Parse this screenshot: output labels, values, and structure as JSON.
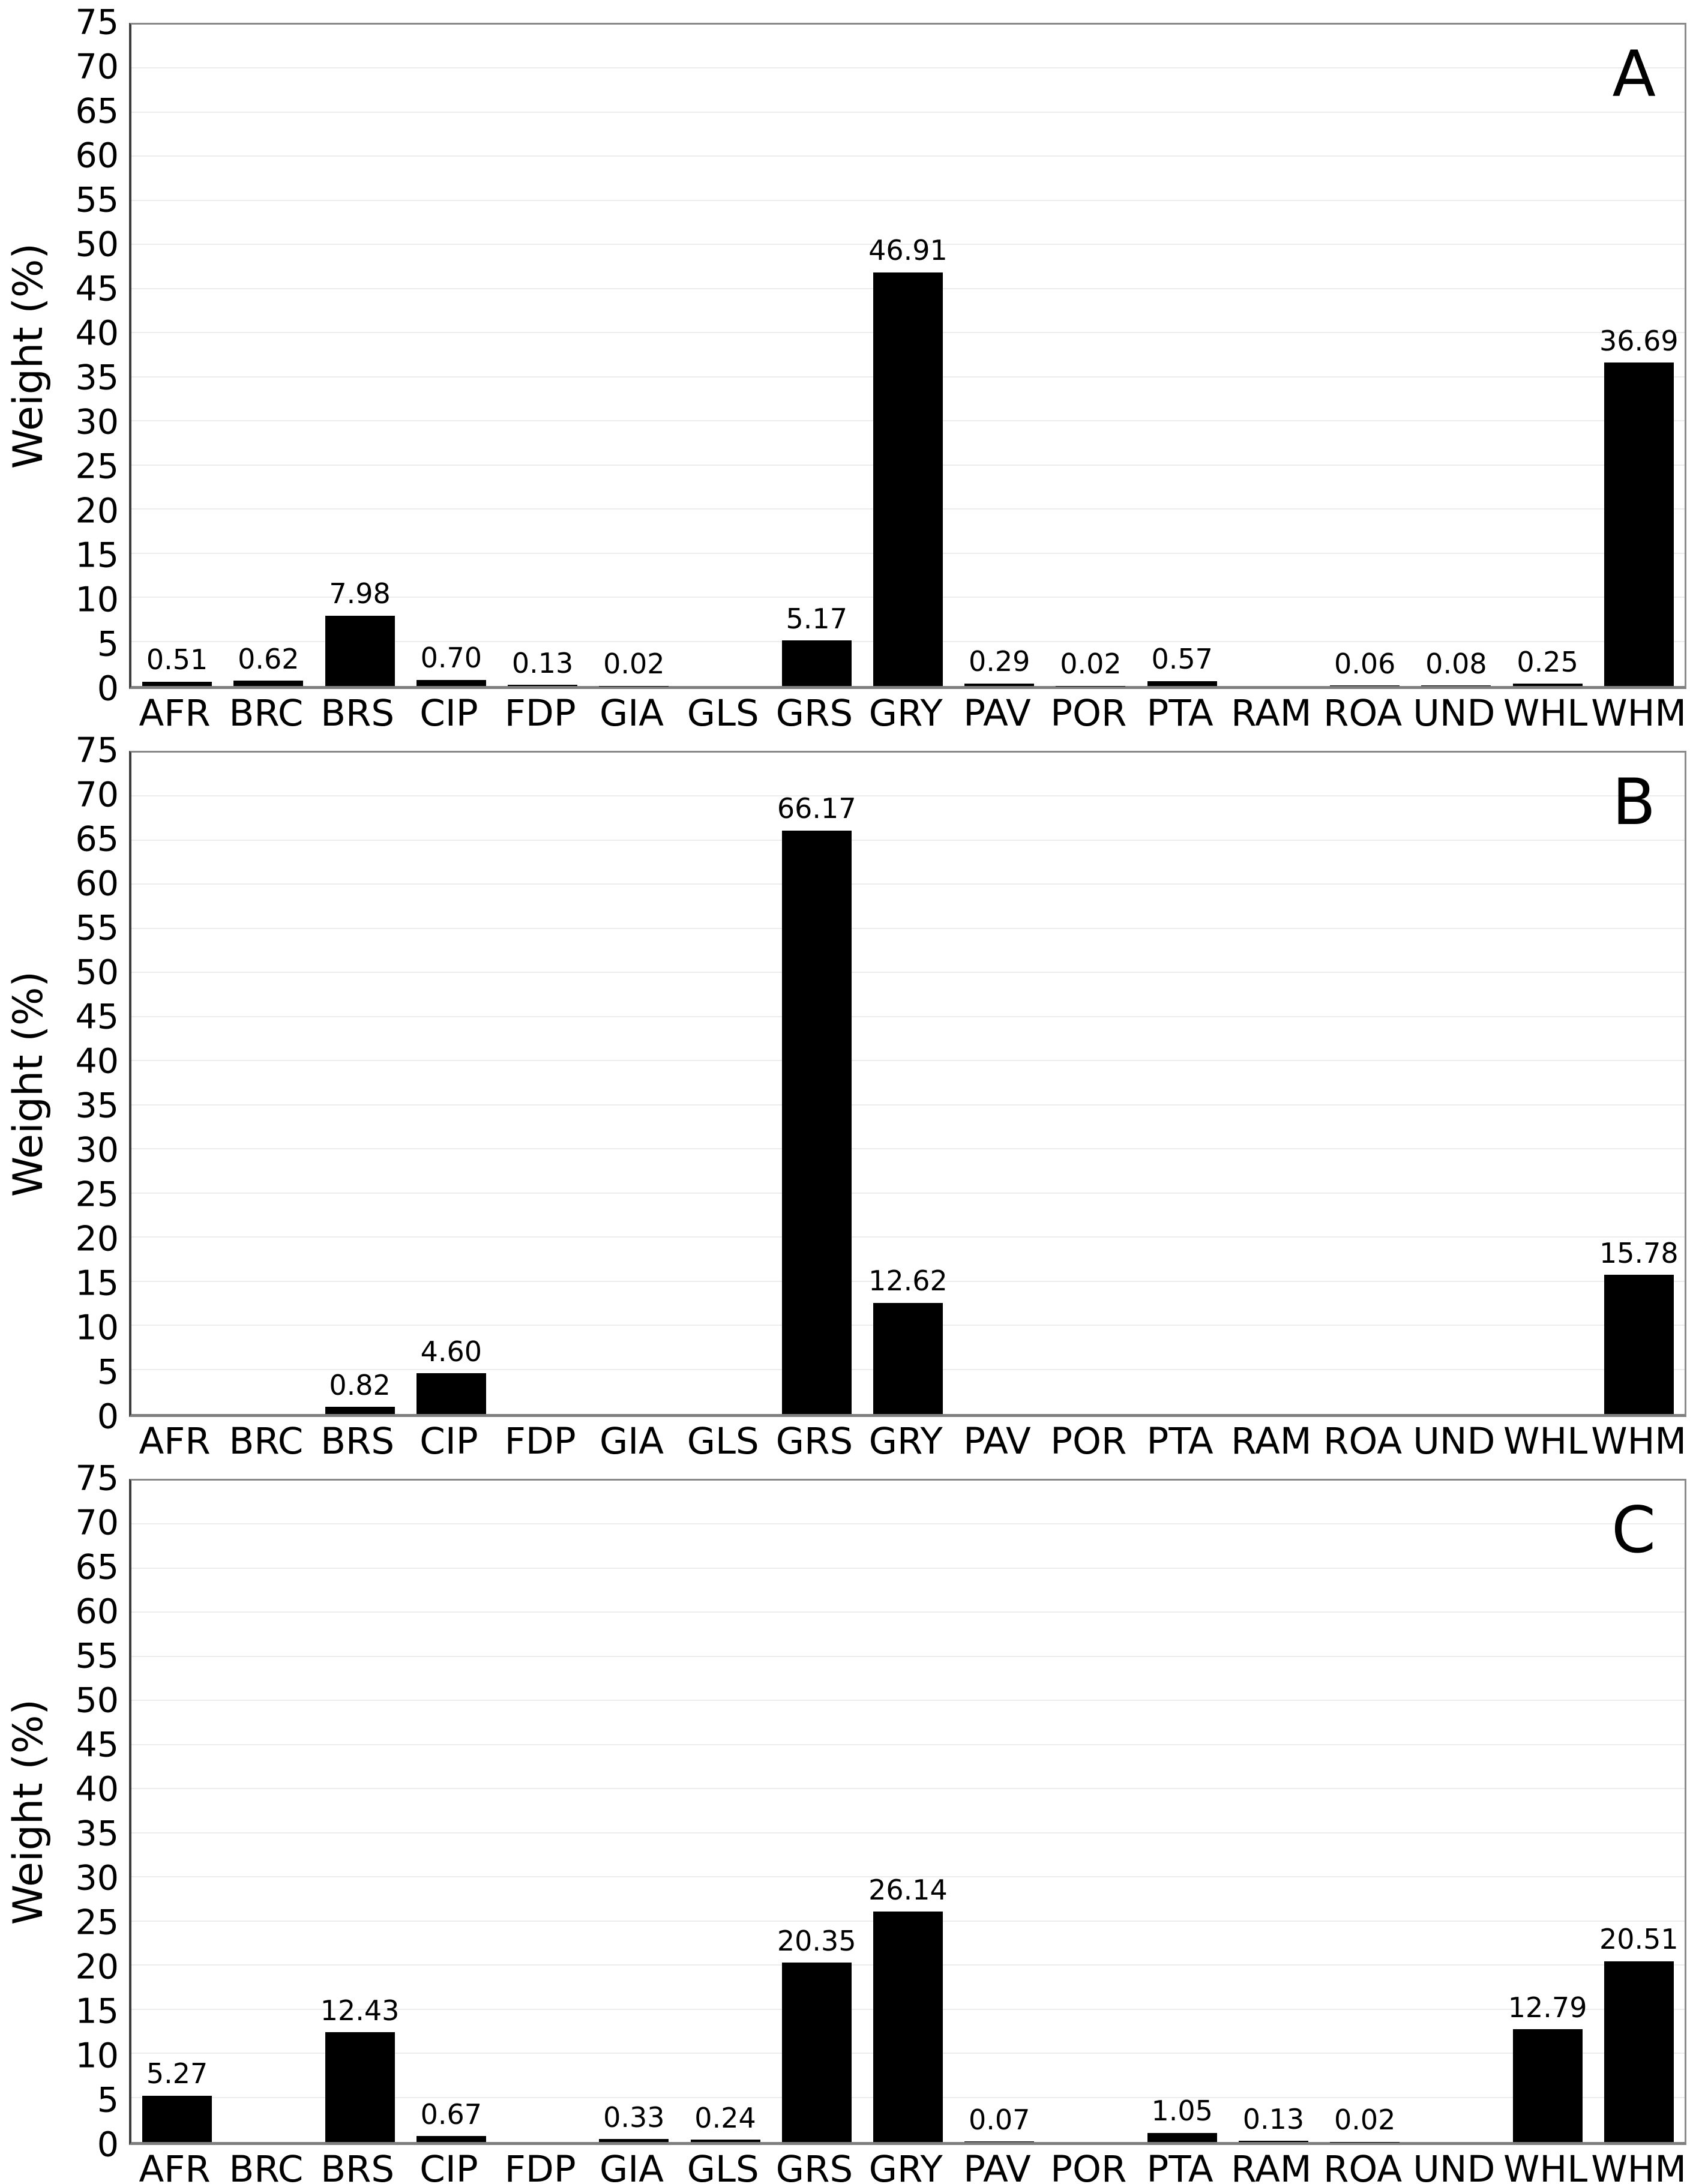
{
  "figure": {
    "background": "#ffffff",
    "bar_color": "#000000",
    "gridline_color": "#ececec",
    "axis_border_color": "#8a8a8a"
  },
  "chart_data": [
    {
      "type": "bar",
      "panel_label": "A",
      "ylabel": "Weight (%)",
      "ylim": [
        0,
        75
      ],
      "ytick_step": 5,
      "yticks": [
        0,
        5,
        10,
        15,
        20,
        25,
        30,
        35,
        40,
        45,
        50,
        55,
        60,
        65,
        70,
        75
      ],
      "grid": true,
      "legend": "none",
      "categories": [
        "AFR",
        "BRC",
        "BRS",
        "CIP",
        "FDP",
        "GIA",
        "GLS",
        "GRS",
        "GRY",
        "PAV",
        "POR",
        "PTA",
        "RAM",
        "ROA",
        "UND",
        "WHL",
        "WHM"
      ],
      "values": [
        0.51,
        0.62,
        7.98,
        0.7,
        0.13,
        0.02,
        null,
        5.17,
        46.91,
        0.29,
        0.02,
        0.57,
        null,
        0.06,
        0.08,
        0.25,
        36.69
      ]
    },
    {
      "type": "bar",
      "panel_label": "B",
      "ylabel": "Weight (%)",
      "ylim": [
        0,
        75
      ],
      "ytick_step": 5,
      "yticks": [
        0,
        5,
        10,
        15,
        20,
        25,
        30,
        35,
        40,
        45,
        50,
        55,
        60,
        65,
        70,
        75
      ],
      "grid": true,
      "legend": "none",
      "categories": [
        "AFR",
        "BRC",
        "BRS",
        "CIP",
        "FDP",
        "GIA",
        "GLS",
        "GRS",
        "GRY",
        "PAV",
        "POR",
        "PTA",
        "RAM",
        "ROA",
        "UND",
        "WHL",
        "WHM"
      ],
      "values": [
        null,
        null,
        0.82,
        4.6,
        null,
        null,
        null,
        66.17,
        12.62,
        null,
        null,
        null,
        null,
        null,
        null,
        null,
        15.78
      ]
    },
    {
      "type": "bar",
      "panel_label": "C",
      "ylabel": "Weight (%)",
      "ylim": [
        0,
        75
      ],
      "ytick_step": 5,
      "yticks": [
        0,
        5,
        10,
        15,
        20,
        25,
        30,
        35,
        40,
        45,
        50,
        55,
        60,
        65,
        70,
        75
      ],
      "grid": true,
      "legend": "none",
      "categories": [
        "AFR",
        "BRC",
        "BRS",
        "CIP",
        "FDP",
        "GIA",
        "GLS",
        "GRS",
        "GRY",
        "PAV",
        "POR",
        "PTA",
        "RAM",
        "ROA",
        "UND",
        "WHL",
        "WHM"
      ],
      "values": [
        5.27,
        null,
        12.43,
        0.67,
        null,
        0.33,
        0.24,
        20.35,
        26.14,
        0.07,
        null,
        1.05,
        0.13,
        0.02,
        null,
        12.79,
        20.51
      ]
    }
  ]
}
